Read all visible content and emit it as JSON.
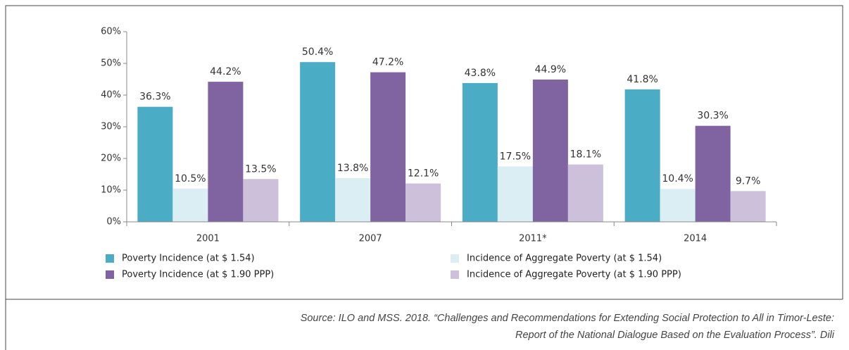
{
  "chart_data": {
    "type": "bar",
    "categories": [
      "2001",
      "2007",
      "2011*",
      "2014"
    ],
    "series": [
      {
        "name": "Poverty Incidence (at $ 1.54)",
        "color": "#4bacc6",
        "values": [
          36.3,
          50.4,
          43.8,
          41.8
        ],
        "value_labels": [
          "36.3%",
          "50.4%",
          "43.8%",
          "41.8%"
        ]
      },
      {
        "name": "Incidence of Aggregate Poverty (at $ 1.54)",
        "color": "#dbeef4",
        "values": [
          10.5,
          13.8,
          17.5,
          10.4
        ],
        "value_labels": [
          "10.5%",
          "13.8%",
          "17.5%",
          "10.4%"
        ]
      },
      {
        "name": "Poverty Incidence (at $ 1.90 PPP)",
        "color": "#8064a2",
        "values": [
          44.2,
          47.2,
          44.9,
          30.3
        ],
        "value_labels": [
          "44.2%",
          "47.2%",
          "44.9%",
          "30.3%"
        ]
      },
      {
        "name": "Incidence of Aggregate Poverty (at $ 1.90 PPP)",
        "color": "#ccc0da",
        "values": [
          13.5,
          12.1,
          18.1,
          9.7
        ],
        "value_labels": [
          "13.5%",
          "12.1%",
          "18.1%",
          "9.7%"
        ]
      }
    ],
    "ylim": [
      0,
      60
    ],
    "yticks": [
      {
        "value": 0,
        "label": "0%"
      },
      {
        "value": 10,
        "label": "10%"
      },
      {
        "value": 20,
        "label": "20%"
      },
      {
        "value": 30,
        "label": "30%"
      },
      {
        "value": 40,
        "label": "40%"
      },
      {
        "value": 50,
        "label": "50%"
      },
      {
        "value": 60,
        "label": "60%"
      }
    ],
    "source": [
      "Source: ILO and MSS. 2018. “Challenges and Recommendations for Extending Social Protection to All in Timor-Leste:",
      "Report of the National Dialogue Based on the Evaluation Process”. Dili"
    ]
  }
}
